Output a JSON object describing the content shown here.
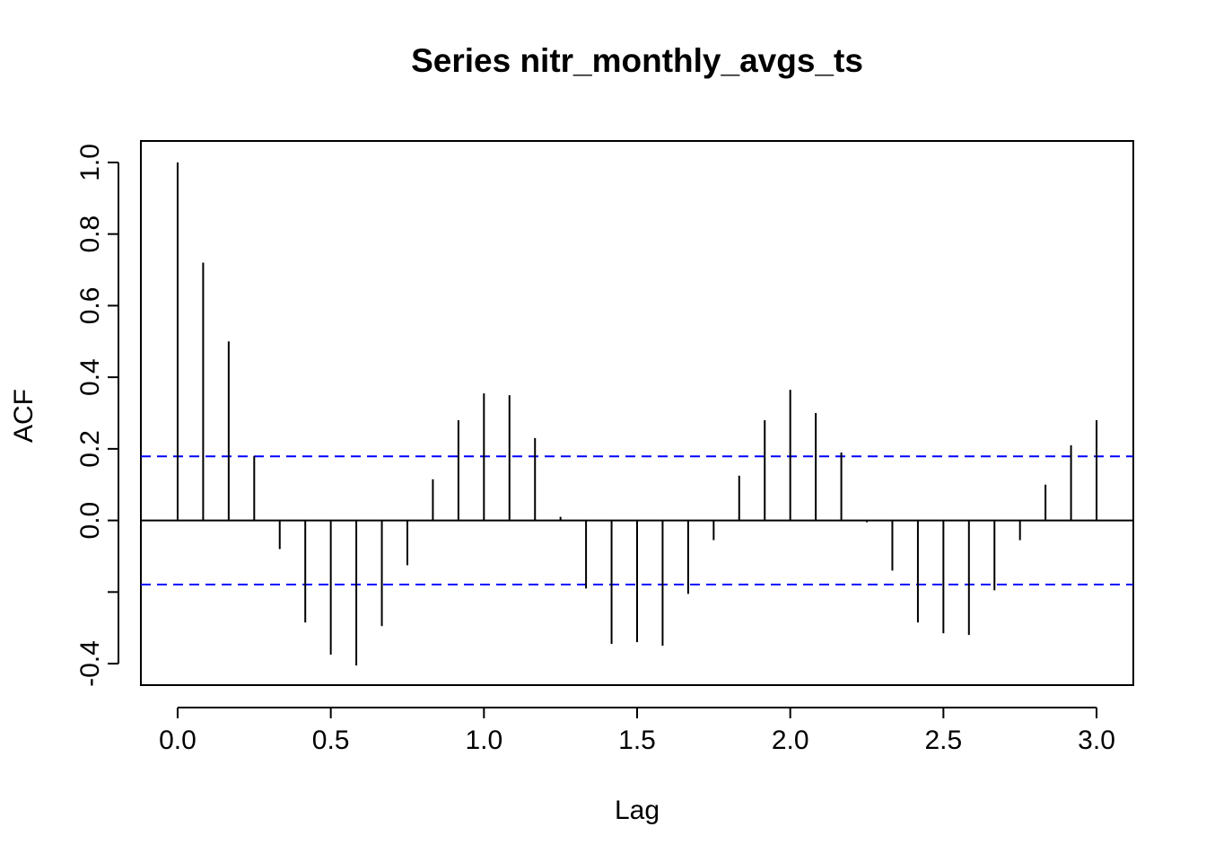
{
  "chart_data": {
    "type": "bar",
    "title": "Series  nitr_monthly_avgs_ts",
    "xlabel": "Lag",
    "ylabel": "ACF",
    "xlim": [
      -0.12,
      3.12
    ],
    "ylim": [
      -0.46,
      1.06
    ],
    "x_ticks": [
      "0.0",
      "0.5",
      "1.0",
      "1.5",
      "2.0",
      "2.5",
      "3.0"
    ],
    "y_ticks": [
      "-0.4",
      "0.0",
      "0.2",
      "0.4",
      "0.6",
      "0.8",
      "1.0"
    ],
    "x": [
      0.0,
      0.0833,
      0.1667,
      0.25,
      0.3333,
      0.4167,
      0.5,
      0.5833,
      0.6667,
      0.75,
      0.8333,
      0.9167,
      1.0,
      1.0833,
      1.1667,
      1.25,
      1.3333,
      1.4167,
      1.5,
      1.5833,
      1.6667,
      1.75,
      1.8333,
      1.9167,
      2.0,
      2.0833,
      2.1667,
      2.25,
      2.3333,
      2.4167,
      2.5,
      2.5833,
      2.6667,
      2.75,
      2.8333,
      2.9167,
      3.0
    ],
    "values": [
      1.0,
      0.72,
      0.5,
      0.18,
      -0.08,
      -0.285,
      -0.375,
      -0.405,
      -0.295,
      -0.125,
      0.115,
      0.28,
      0.355,
      0.35,
      0.23,
      0.01,
      -0.19,
      -0.345,
      -0.34,
      -0.35,
      -0.205,
      -0.055,
      0.125,
      0.28,
      0.365,
      0.3,
      0.19,
      -0.005,
      -0.14,
      -0.285,
      -0.315,
      -0.32,
      -0.195,
      -0.055,
      0.1,
      0.21,
      0.28
    ],
    "confidence_bound": 0.179,
    "confidence_color": "#0000ff",
    "grid": false,
    "legend": "none"
  }
}
